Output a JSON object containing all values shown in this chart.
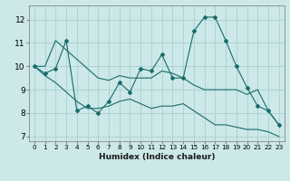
{
  "title": "",
  "xlabel": "Humidex (Indice chaleur)",
  "ylabel": "",
  "bg_color": "#cce8e8",
  "grid_color": "#aacfcf",
  "line_color": "#1a6b6b",
  "x_values": [
    0,
    1,
    2,
    3,
    4,
    5,
    6,
    7,
    8,
    9,
    10,
    11,
    12,
    13,
    14,
    15,
    16,
    17,
    18,
    19,
    20,
    21,
    22,
    23
  ],
  "y_main": [
    10.0,
    9.7,
    9.9,
    11.1,
    8.1,
    8.3,
    8.0,
    8.5,
    9.3,
    8.9,
    9.9,
    9.8,
    10.5,
    9.5,
    9.5,
    11.5,
    12.1,
    12.1,
    11.1,
    10.0,
    9.1,
    8.3,
    8.1,
    7.5
  ],
  "y_upper": [
    10.0,
    10.0,
    11.1,
    10.7,
    10.3,
    9.9,
    9.5,
    9.4,
    9.6,
    9.5,
    9.5,
    9.5,
    9.8,
    9.7,
    9.5,
    9.2,
    9.0,
    9.0,
    9.0,
    9.0,
    8.8,
    9.0,
    8.1,
    7.5
  ],
  "y_lower": [
    10.0,
    9.6,
    9.3,
    8.9,
    8.5,
    8.2,
    8.2,
    8.3,
    8.5,
    8.6,
    8.4,
    8.2,
    8.3,
    8.3,
    8.4,
    8.1,
    7.8,
    7.5,
    7.5,
    7.4,
    7.3,
    7.3,
    7.2,
    7.0
  ],
  "xlim": [
    -0.5,
    23.5
  ],
  "ylim": [
    6.8,
    12.6
  ],
  "yticks": [
    7,
    8,
    9,
    10,
    11,
    12
  ],
  "xticks": [
    0,
    1,
    2,
    3,
    4,
    5,
    6,
    7,
    8,
    9,
    10,
    11,
    12,
    13,
    14,
    15,
    16,
    17,
    18,
    19,
    20,
    21,
    22,
    23
  ]
}
